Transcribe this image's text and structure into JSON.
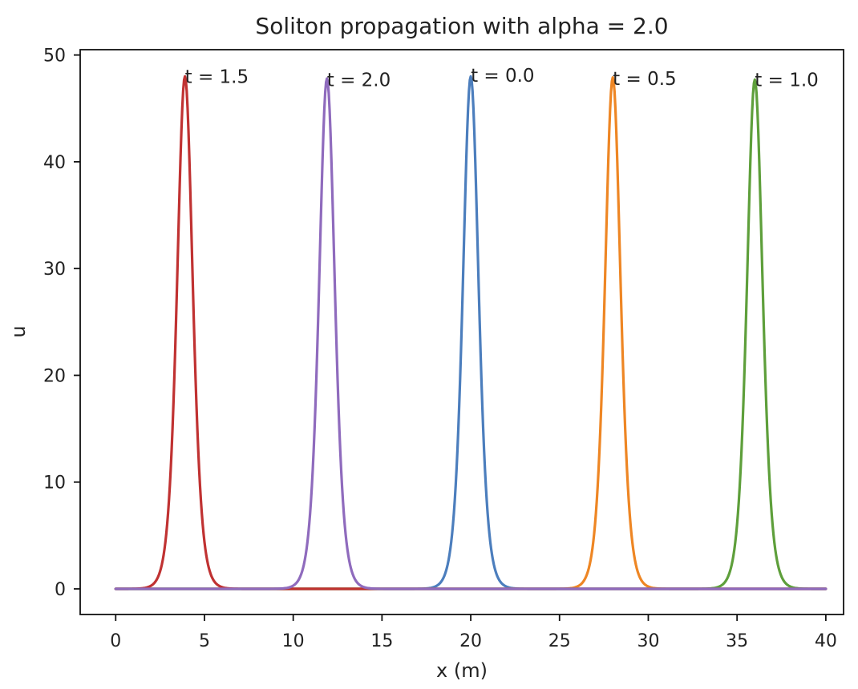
{
  "chart_data": {
    "type": "line",
    "title": "Soliton propagation with alpha = 2.0",
    "xlabel": "x (m)",
    "ylabel": "u",
    "xlim": [
      -2,
      41
    ],
    "ylim": [
      -2.4,
      50.5
    ],
    "grid": false,
    "x_ticks": [
      0,
      5,
      10,
      15,
      20,
      25,
      30,
      35,
      40
    ],
    "y_ticks": [
      0,
      10,
      20,
      30,
      40,
      50
    ],
    "series": [
      {
        "label": "t = 0.0",
        "color": "#4c7ebd",
        "center": 20.0,
        "amplitude": 48.0,
        "label_x": 20.0,
        "label_y": 48.1
      },
      {
        "label": "t = 0.5",
        "color": "#ee8624",
        "center": 28.0,
        "amplitude": 47.9,
        "label_x": 28.0,
        "label_y": 47.8
      },
      {
        "label": "t = 1.0",
        "color": "#5e9f3b",
        "center": 36.0,
        "amplitude": 47.7,
        "label_x": 36.0,
        "label_y": 47.7
      },
      {
        "label": "t = 1.5",
        "color": "#c03232",
        "center": 3.9,
        "amplitude": 48.0,
        "label_x": 3.9,
        "label_y": 48.0
      },
      {
        "label": "t = 2.0",
        "color": "#8f6bbd",
        "center": 11.9,
        "amplitude": 47.8,
        "label_x": 11.9,
        "label_y": 47.7
      }
    ],
    "curve": {
      "x_start": 0,
      "x_end": 40,
      "samples": 801,
      "width_scale": 0.59
    }
  }
}
